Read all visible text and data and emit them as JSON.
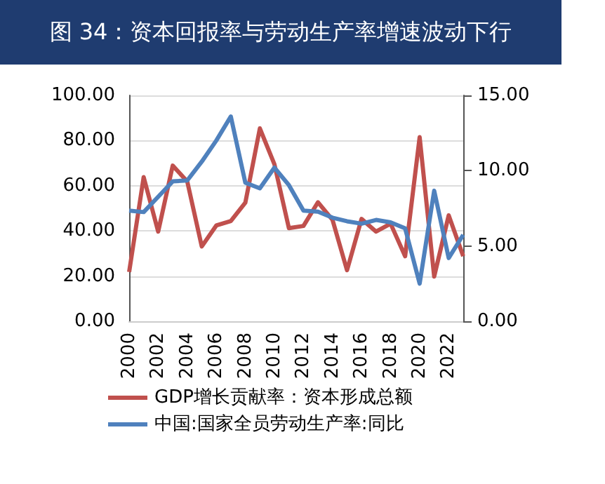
{
  "chart_data": {
    "type": "line",
    "title": "图 34：资本回报率与劳动生产率增速波动下行",
    "categories": [
      "2000",
      null,
      "2002",
      null,
      "2004",
      null,
      "2006",
      null,
      "2008",
      null,
      "2010",
      null,
      "2012",
      null,
      "2014",
      null,
      "2016",
      null,
      "2018",
      null,
      "2020",
      null,
      "2022",
      null
    ],
    "series": [
      {
        "name": "GDP增长贡献率：资本形成总额",
        "color": "#c0504d",
        "values": [
          21.8,
          63.8,
          39.7,
          68.9,
          61.9,
          33.1,
          42.4,
          44.4,
          52.5,
          85.4,
          69.5,
          41.2,
          42.2,
          52.7,
          44.9,
          22.6,
          45.3,
          39.7,
          43.2,
          28.8,
          81.5,
          19.8,
          46.9,
          28.8
        ]
      },
      {
        "name": "中国:国家全员劳动生产率:同比",
        "color": "#4f81bd",
        "axis": "y2",
        "values": [
          7.35,
          7.25,
          8.27,
          9.29,
          9.35,
          10.6,
          12.0,
          13.6,
          9.2,
          8.83,
          10.2,
          9.04,
          7.35,
          7.28,
          6.88,
          6.64,
          6.48,
          6.73,
          6.57,
          6.17,
          2.5,
          8.67,
          4.2,
          5.74
        ]
      }
    ],
    "ylim": [
      0,
      100
    ],
    "yticks": [
      {
        "value": 0,
        "label": "0.00"
      },
      {
        "value": 20,
        "label": "20.00"
      },
      {
        "value": 40,
        "label": "40.00"
      },
      {
        "value": 60,
        "label": "60.00"
      },
      {
        "value": 80,
        "label": "80.00"
      },
      {
        "value": 100,
        "label": "100.00"
      }
    ],
    "y2lim": [
      0,
      15
    ],
    "y2ticks": [
      {
        "value": 0,
        "label": "0.00"
      },
      {
        "value": 5,
        "label": "5.00"
      },
      {
        "value": 10,
        "label": "10.00"
      },
      {
        "value": 15,
        "label": "15.00"
      }
    ],
    "grid": "y",
    "legend": "bottom",
    "marker": "none",
    "line_style": "solid"
  }
}
